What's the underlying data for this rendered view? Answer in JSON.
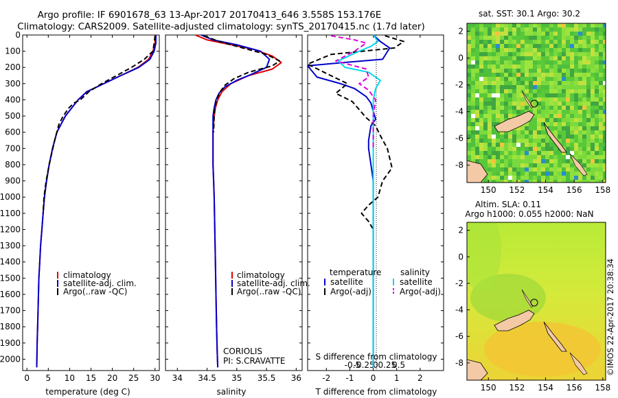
{
  "header": {
    "line1": "Argo profile: IF 6901678_63 13-Apr-2017 20170413_646 3.558S 153.176E",
    "line2": "Climatology: CARS2009. Satellite-adjusted climatology: synTS_20170415.nc (1.7d later)"
  },
  "colors": {
    "clim": "#e00000",
    "sat": "#0000cc",
    "argo": "#000000",
    "sat_cyan": "#00d8e8",
    "argo_mag": "#e000e0"
  },
  "chart_data": [
    {
      "id": "temperature",
      "type": "line",
      "xlabel": "temperature (deg C)",
      "ylabel": "",
      "xlim": [
        -1,
        31
      ],
      "ylim": [
        2070,
        0
      ],
      "xticks": [
        0,
        5,
        10,
        15,
        20,
        25,
        30
      ],
      "xtick_labels": [
        "0",
        "5",
        "10",
        "15",
        "20",
        "25",
        "30"
      ],
      "yticks": [
        0,
        100,
        200,
        300,
        400,
        500,
        600,
        700,
        800,
        900,
        1000,
        1100,
        1200,
        1300,
        1400,
        1500,
        1600,
        1700,
        1800,
        1900,
        2000
      ],
      "ytick_labels": [
        "0",
        "100",
        "200",
        "300",
        "400",
        "500",
        "600",
        "700",
        "800",
        "900",
        "1000",
        "1100",
        "1200",
        "1300",
        "1400",
        "1500",
        "1600",
        "1700",
        "1800",
        "1900",
        "2000"
      ],
      "legend": [
        "climatology",
        "satellite-adj. clim.",
        "Argo(..raw -QC)"
      ],
      "series": [
        {
          "name": "climatology",
          "style": "clim",
          "x": [
            30,
            30,
            29.5,
            28.5,
            26,
            22,
            18,
            14,
            12,
            10.5,
            9,
            8,
            7,
            6,
            5.2,
            4.6,
            4.1,
            3.8,
            3.5,
            3.2,
            3,
            2.8,
            2.7,
            2.6,
            2.5,
            2.4,
            2.3
          ],
          "y": [
            0,
            50,
            100,
            150,
            200,
            250,
            300,
            350,
            400,
            450,
            500,
            550,
            600,
            700,
            800,
            900,
            1000,
            1100,
            1200,
            1300,
            1400,
            1500,
            1600,
            1700,
            1800,
            1900,
            2050
          ]
        },
        {
          "name": "satellite-adj. clim.",
          "style": "sat",
          "x": [
            30.2,
            30.2,
            29.8,
            28.8,
            26.2,
            22,
            18,
            14,
            12,
            10.5,
            9,
            8,
            7,
            6,
            5.2,
            4.6,
            4.1,
            3.8,
            3.5,
            3.2,
            3,
            2.8,
            2.7,
            2.6,
            2.5,
            2.4,
            2.3
          ],
          "y": [
            0,
            50,
            100,
            150,
            200,
            250,
            300,
            350,
            400,
            450,
            500,
            550,
            600,
            700,
            800,
            900,
            1000,
            1100,
            1200,
            1300,
            1400,
            1500,
            1600,
            1700,
            1800,
            1900,
            2050
          ]
        },
        {
          "name": "Argo(..raw -QC)",
          "style": "argo",
          "x": [
            30,
            29.8,
            29.5,
            27.5,
            24.5,
            21,
            17.5,
            14.5,
            12.5,
            11,
            9.8,
            8.5,
            7.5,
            6.5,
            5.2,
            4.5,
            4,
            3.8
          ],
          "y": [
            5,
            50,
            100,
            150,
            200,
            250,
            300,
            350,
            400,
            420,
            450,
            500,
            550,
            650,
            800,
            900,
            1000,
            1100
          ]
        }
      ],
      "annotations": []
    },
    {
      "id": "salinity",
      "type": "line",
      "xlabel": "salinity",
      "ylabel": "",
      "xlim": [
        33.8,
        36.1
      ],
      "ylim": [
        2070,
        0
      ],
      "xticks": [
        34,
        34.5,
        35,
        35.5,
        36
      ],
      "xtick_labels": [
        "34",
        "34.5",
        "35",
        "35.5",
        "36"
      ],
      "legend": [
        "climatology",
        "satellite-adj. clim.",
        "Argo(..raw -QC)"
      ],
      "series": [
        {
          "name": "climatology",
          "style": "clim",
          "x": [
            34.3,
            34.5,
            34.9,
            35.3,
            35.6,
            35.75,
            35.6,
            35.2,
            34.9,
            34.75,
            34.68,
            34.64,
            34.62,
            34.6,
            34.6,
            34.6,
            34.61,
            34.62,
            34.63,
            34.64,
            34.65,
            34.66,
            34.67,
            34.68
          ],
          "y": [
            0,
            30,
            60,
            90,
            130,
            170,
            210,
            250,
            300,
            350,
            400,
            450,
            500,
            600,
            700,
            800,
            900,
            1000,
            1200,
            1400,
            1600,
            1800,
            1950,
            2050
          ]
        },
        {
          "name": "satellite-adj. clim.",
          "style": "sat",
          "x": [
            34.4,
            34.6,
            35,
            35.4,
            35.55,
            35.5,
            35.2,
            35,
            34.8,
            34.7,
            34.65,
            34.62,
            34.6,
            34.6,
            34.6,
            34.6,
            34.61,
            34.62,
            34.63,
            34.64,
            34.65,
            34.66,
            34.67,
            34.68
          ],
          "y": [
            0,
            30,
            60,
            100,
            150,
            200,
            250,
            280,
            320,
            360,
            400,
            450,
            500,
            600,
            700,
            800,
            900,
            1000,
            1200,
            1400,
            1600,
            1800,
            1950,
            2050
          ]
        },
        {
          "name": "Argo(..raw -QC)",
          "style": "argo",
          "x": [
            34.45,
            34.7,
            35.1,
            35.5,
            35.72,
            35.6,
            35.2,
            34.95,
            34.8,
            34.72,
            34.66,
            34.63,
            34.62,
            34.61
          ],
          "y": [
            5,
            40,
            80,
            120,
            160,
            190,
            230,
            270,
            310,
            350,
            400,
            450,
            500,
            600
          ]
        }
      ],
      "annotations": [
        "CORIOLIS",
        "PI: S.CRAVATTE"
      ]
    },
    {
      "id": "difference",
      "type": "line",
      "xlabel": "T difference from climatology",
      "xlabel_top": "S difference from climatology",
      "xlim": [
        -2.8,
        3
      ],
      "ylim": [
        2070,
        0
      ],
      "xticks": [
        -2,
        -1,
        0,
        1,
        2
      ],
      "xtick_labels": [
        "-2",
        "-1",
        "0",
        "1",
        "2"
      ],
      "sticks": [
        -0.5,
        -0.25,
        0,
        0.25,
        0.5
      ],
      "stick_labels": [
        "-0.5",
        "-0.25",
        "0",
        "0.25",
        "0.5"
      ],
      "legend_left_title": "temperature",
      "legend_right_title": "salinity",
      "legend": [
        "satellite",
        "Argo(-adj)",
        "satellite",
        "Argo(-adj)"
      ],
      "series": [
        {
          "name": "T satellite",
          "style": "sat",
          "x": [
            0,
            0.3,
            0.7,
            0.4,
            -1.3,
            -2.8,
            -2.4,
            -1.4,
            -0.8,
            -0.3,
            -0.1,
            0,
            0.1,
            -0.1,
            -0.2,
            -0.2,
            -0.1,
            0,
            0,
            0,
            0,
            0
          ],
          "y": [
            0,
            40,
            80,
            150,
            170,
            190,
            260,
            300,
            330,
            380,
            420,
            470,
            520,
            560,
            650,
            700,
            800,
            900,
            1100,
            1500,
            1800,
            2050
          ]
        },
        {
          "name": "T Argo(-adj)",
          "style": "argo",
          "x": [
            0.5,
            1.3,
            0.9,
            -1.8,
            -2.9,
            -2.1,
            -1.1,
            -1.6,
            -0.9,
            -0.6,
            -0.3,
            0.1,
            0.3,
            0.6,
            0.8,
            0.4,
            0.2,
            -0.2,
            -0.5,
            -0.2,
            0
          ],
          "y": [
            5,
            40,
            80,
            120,
            180,
            230,
            300,
            360,
            410,
            460,
            510,
            560,
            620,
            700,
            820,
            900,
            1000,
            1050,
            1100,
            1150,
            1200
          ]
        },
        {
          "name": "S satellite",
          "style": "sat_cyan",
          "x": [
            0,
            0.2,
            -0.1,
            -0.6,
            -1.5,
            -1.2,
            -0.2,
            0.3,
            0.1,
            0,
            0,
            0,
            0,
            0,
            0,
            0,
            0,
            0
          ],
          "y": [
            0,
            40,
            70,
            100,
            160,
            200,
            230,
            280,
            330,
            400,
            500,
            600,
            800,
            1000,
            1300,
            1600,
            1800,
            2050
          ]
        },
        {
          "name": "S Argo(-adj)",
          "style": "argo_mag",
          "x": [
            -1.8,
            -0.8,
            -0.3,
            -0.8,
            -1.6,
            -0.3,
            -0.2,
            -0.6,
            -0.2,
            0.1,
            0,
            0,
            0
          ],
          "y": [
            5,
            30,
            50,
            100,
            160,
            210,
            260,
            300,
            340,
            400,
            500,
            600,
            700
          ]
        }
      ],
      "annotations": []
    }
  ],
  "maps": {
    "sst": {
      "title": "sat. SST: 30.1 Argo: 30.2",
      "xticks": [
        "150",
        "152",
        "154",
        "156",
        "158"
      ],
      "yticks": [
        "2",
        "0",
        "-2",
        "-4",
        "-6",
        "-8"
      ]
    },
    "sla": {
      "title1": "Altim. SLA: 0.11",
      "title2": "Argo h1000: 0.055 h2000: NaN",
      "xticks": [
        "150",
        "152",
        "154",
        "156",
        "158"
      ],
      "yticks": [
        "2",
        "0",
        "-2",
        "-4",
        "-6",
        "-8"
      ]
    }
  },
  "watermark": "©IMOS 22-Apr-2017 20:38:34"
}
